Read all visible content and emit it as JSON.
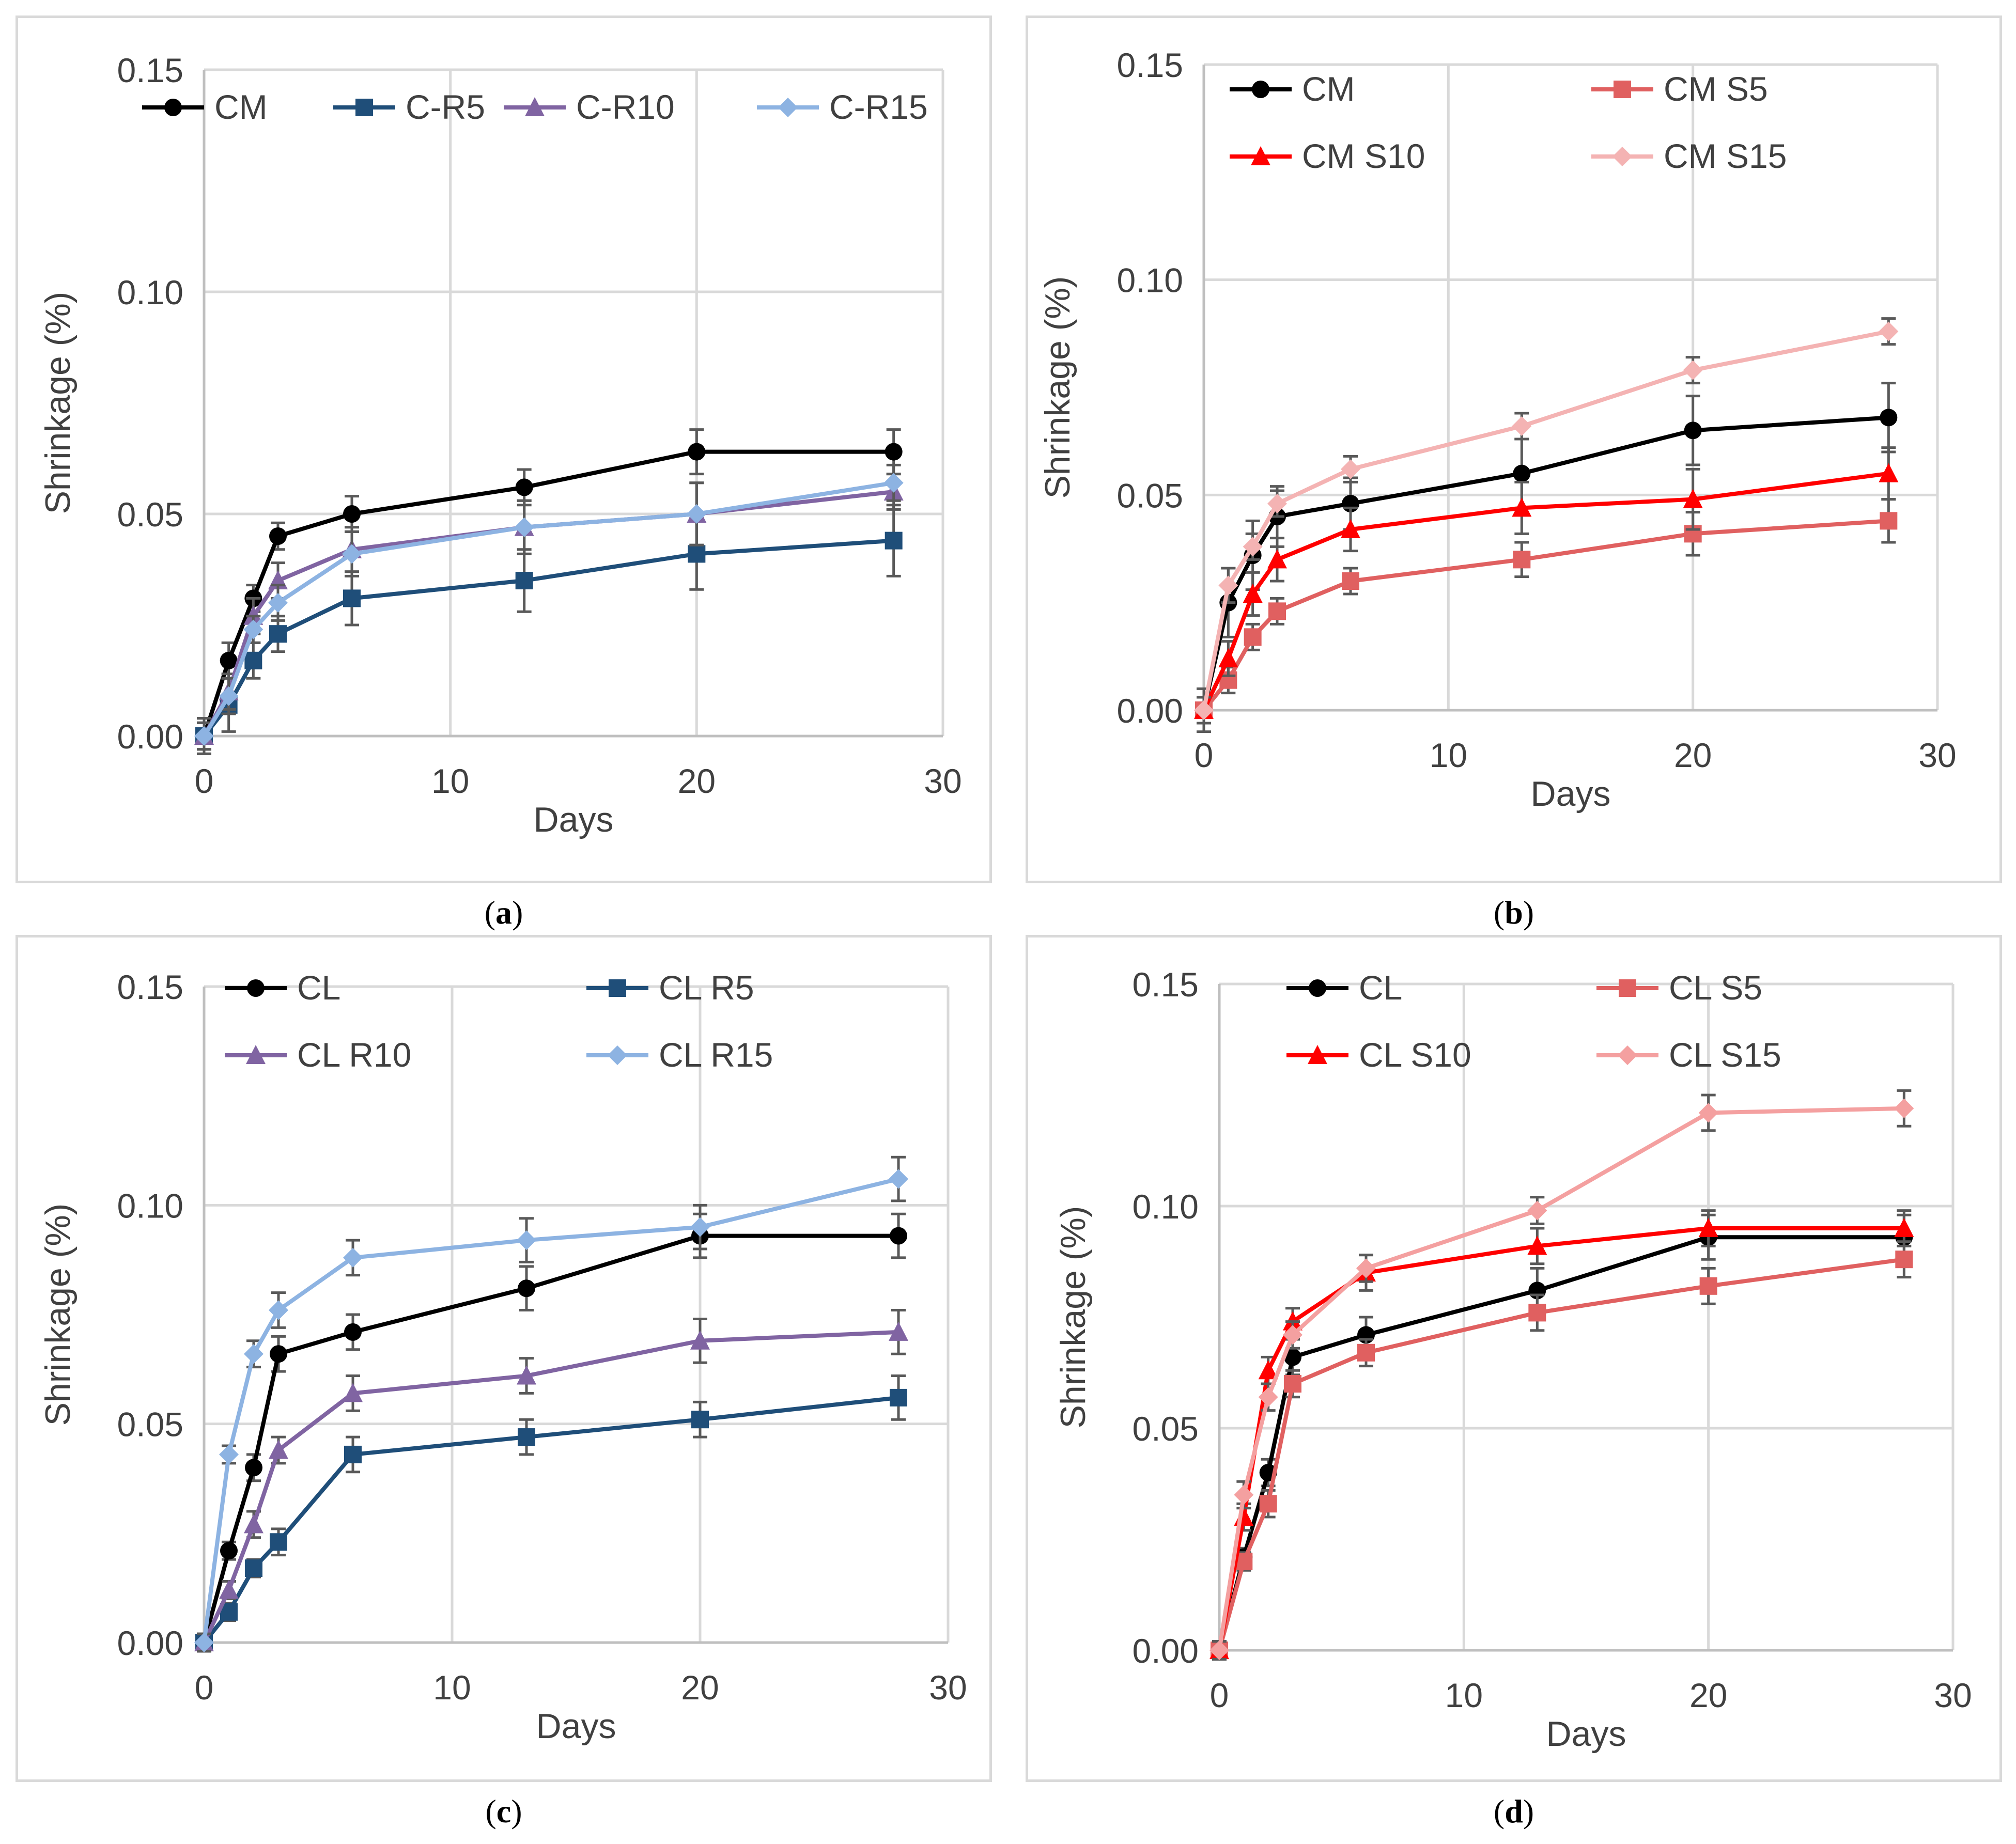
{
  "chart_data": [
    {
      "type": "line",
      "label": "a",
      "xlabel": "Days",
      "ylabel": "Shrinkage (%)",
      "xlim": [
        0,
        30
      ],
      "ylim": [
        0,
        0.15
      ],
      "xticks": [
        "0",
        "10",
        "20",
        "30"
      ],
      "yticks": [
        "0.00",
        "0.05",
        "0.10",
        "0.15"
      ],
      "x": [
        0,
        1,
        2,
        3,
        6,
        13,
        20,
        28
      ],
      "legend_position": "top",
      "series": [
        {
          "name": "CM",
          "color": "#000000",
          "marker": "circle",
          "values": [
            0,
            0.017,
            0.031,
            0.045,
            0.05,
            0.056,
            0.064,
            0.064
          ],
          "errors": [
            0.004,
            0.004,
            0.003,
            0.003,
            0.004,
            0.004,
            0.005,
            0.005
          ]
        },
        {
          "name": "C-R5",
          "color": "#1f4e79",
          "marker": "square",
          "values": [
            0,
            0.007,
            0.017,
            0.023,
            0.031,
            0.035,
            0.041,
            0.044
          ],
          "errors": [
            0.004,
            0.006,
            0.004,
            0.004,
            0.006,
            0.007,
            0.008,
            0.008
          ]
        },
        {
          "name": "C-R10",
          "color": "#8064a2",
          "marker": "triangle",
          "values": [
            0,
            0.01,
            0.027,
            0.035,
            0.042,
            0.047,
            0.05,
            0.055
          ],
          "errors": [
            0.003,
            0.004,
            0.004,
            0.004,
            0.005,
            0.006,
            0.007,
            0.004
          ]
        },
        {
          "name": "C-R15",
          "color": "#8db3e2",
          "marker": "diamond",
          "values": [
            0,
            0.009,
            0.024,
            0.03,
            0.041,
            0.047,
            0.05,
            0.057
          ],
          "errors": [
            0.003,
            0.004,
            0.003,
            0.004,
            0.005,
            0.006,
            0.007,
            0.004
          ]
        }
      ]
    },
    {
      "type": "line",
      "label": "b",
      "xlabel": "Days",
      "ylabel": "Shrinkage (%)",
      "xlim": [
        0,
        30
      ],
      "ylim": [
        0,
        0.15
      ],
      "xticks": [
        "0",
        "10",
        "20",
        "30"
      ],
      "yticks": [
        "0.00",
        "0.05",
        "0.10",
        "0.15"
      ],
      "x": [
        0,
        1,
        2,
        3,
        6,
        13,
        20,
        28
      ],
      "legend_position": "top",
      "series": [
        {
          "name": "CM",
          "color": "#000000",
          "marker": "circle",
          "values": [
            0,
            0.025,
            0.036,
            0.045,
            0.048,
            0.055,
            0.065,
            0.068
          ],
          "errors": [
            0.005,
            0.008,
            0.008,
            0.007,
            0.006,
            0.008,
            0.008,
            0.008
          ]
        },
        {
          "name": "CM S5",
          "color": "#e06060",
          "marker": "square",
          "values": [
            0,
            0.007,
            0.017,
            0.023,
            0.03,
            0.035,
            0.041,
            0.044
          ],
          "errors": [
            0.003,
            0.003,
            0.003,
            0.003,
            0.003,
            0.004,
            0.005,
            0.005
          ]
        },
        {
          "name": "CM S10",
          "color": "#ff0000",
          "marker": "triangle",
          "values": [
            0,
            0.012,
            0.027,
            0.035,
            0.042,
            0.047,
            0.049,
            0.055
          ],
          "errors": [
            0.003,
            0.004,
            0.005,
            0.005,
            0.005,
            0.006,
            0.007,
            0.006
          ]
        },
        {
          "name": "CM S15",
          "color": "#f4b3b3",
          "marker": "diamond",
          "values": [
            0,
            0.029,
            0.038,
            0.048,
            0.056,
            0.066,
            0.079,
            0.088
          ],
          "errors": [
            0.003,
            0.004,
            0.003,
            0.003,
            0.003,
            0.003,
            0.003,
            0.003
          ]
        }
      ]
    },
    {
      "type": "line",
      "label": "c",
      "xlabel": "Days",
      "ylabel": "Shrinkage (%)",
      "xlim": [
        0,
        30
      ],
      "ylim": [
        0,
        0.15
      ],
      "xticks": [
        "0",
        "10",
        "20",
        "30"
      ],
      "yticks": [
        "0.00",
        "0.05",
        "0.10",
        "0.15"
      ],
      "x": [
        0,
        1,
        2,
        3,
        6,
        13,
        20,
        28
      ],
      "legend_position": "top",
      "series": [
        {
          "name": "CL",
          "color": "#000000",
          "marker": "circle",
          "values": [
            0,
            0.021,
            0.04,
            0.066,
            0.071,
            0.081,
            0.093,
            0.093
          ],
          "errors": [
            0.002,
            0.002,
            0.003,
            0.004,
            0.004,
            0.005,
            0.005,
            0.005
          ]
        },
        {
          "name": "CL R5",
          "color": "#1f4e79",
          "marker": "square",
          "values": [
            0,
            0.007,
            0.017,
            0.023,
            0.043,
            0.047,
            0.051,
            0.056
          ],
          "errors": [
            0.002,
            0.002,
            0.002,
            0.003,
            0.004,
            0.004,
            0.004,
            0.005
          ]
        },
        {
          "name": "CL R10",
          "color": "#8064a2",
          "marker": "triangle",
          "values": [
            0,
            0.012,
            0.027,
            0.044,
            0.057,
            0.061,
            0.069,
            0.071
          ],
          "errors": [
            0.002,
            0.002,
            0.003,
            0.003,
            0.004,
            0.004,
            0.005,
            0.005
          ]
        },
        {
          "name": "CL R15",
          "color": "#8db3e2",
          "marker": "diamond",
          "values": [
            0,
            0.043,
            0.066,
            0.076,
            0.088,
            0.092,
            0.095,
            0.106
          ],
          "errors": [
            0.002,
            0.002,
            0.003,
            0.004,
            0.004,
            0.005,
            0.005,
            0.005
          ]
        }
      ]
    },
    {
      "type": "line",
      "label": "d",
      "xlabel": "Days",
      "ylabel": "Shrinkage (%)",
      "xlim": [
        0,
        30
      ],
      "ylim": [
        0,
        0.15
      ],
      "xticks": [
        "0",
        "10",
        "20",
        "30"
      ],
      "yticks": [
        "0.00",
        "0.05",
        "0.10",
        "0.15"
      ],
      "x": [
        0,
        1,
        2,
        3,
        6,
        13,
        20,
        28
      ],
      "legend_position": "top",
      "series": [
        {
          "name": "CL",
          "color": "#000000",
          "marker": "circle",
          "values": [
            0,
            0.021,
            0.04,
            0.066,
            0.071,
            0.081,
            0.093,
            0.093
          ],
          "errors": [
            0.002,
            0.002,
            0.003,
            0.004,
            0.004,
            0.005,
            0.005,
            0.005
          ]
        },
        {
          "name": "CL S5",
          "color": "#e06060",
          "marker": "square",
          "values": [
            0,
            0.02,
            0.033,
            0.06,
            0.067,
            0.076,
            0.082,
            0.088
          ],
          "errors": [
            0.002,
            0.002,
            0.003,
            0.003,
            0.003,
            0.004,
            0.004,
            0.004
          ]
        },
        {
          "name": "CL S10",
          "color": "#ff0000",
          "marker": "triangle",
          "values": [
            0,
            0.03,
            0.063,
            0.074,
            0.085,
            0.091,
            0.095,
            0.095
          ],
          "errors": [
            0.002,
            0.003,
            0.003,
            0.003,
            0.004,
            0.004,
            0.004,
            0.004
          ]
        },
        {
          "name": "CL S15",
          "color": "#f4a0a0",
          "marker": "diamond",
          "values": [
            0,
            0.035,
            0.057,
            0.071,
            0.086,
            0.099,
            0.121,
            0.122
          ],
          "errors": [
            0.002,
            0.003,
            0.003,
            0.003,
            0.003,
            0.003,
            0.004,
            0.004
          ]
        }
      ]
    }
  ]
}
